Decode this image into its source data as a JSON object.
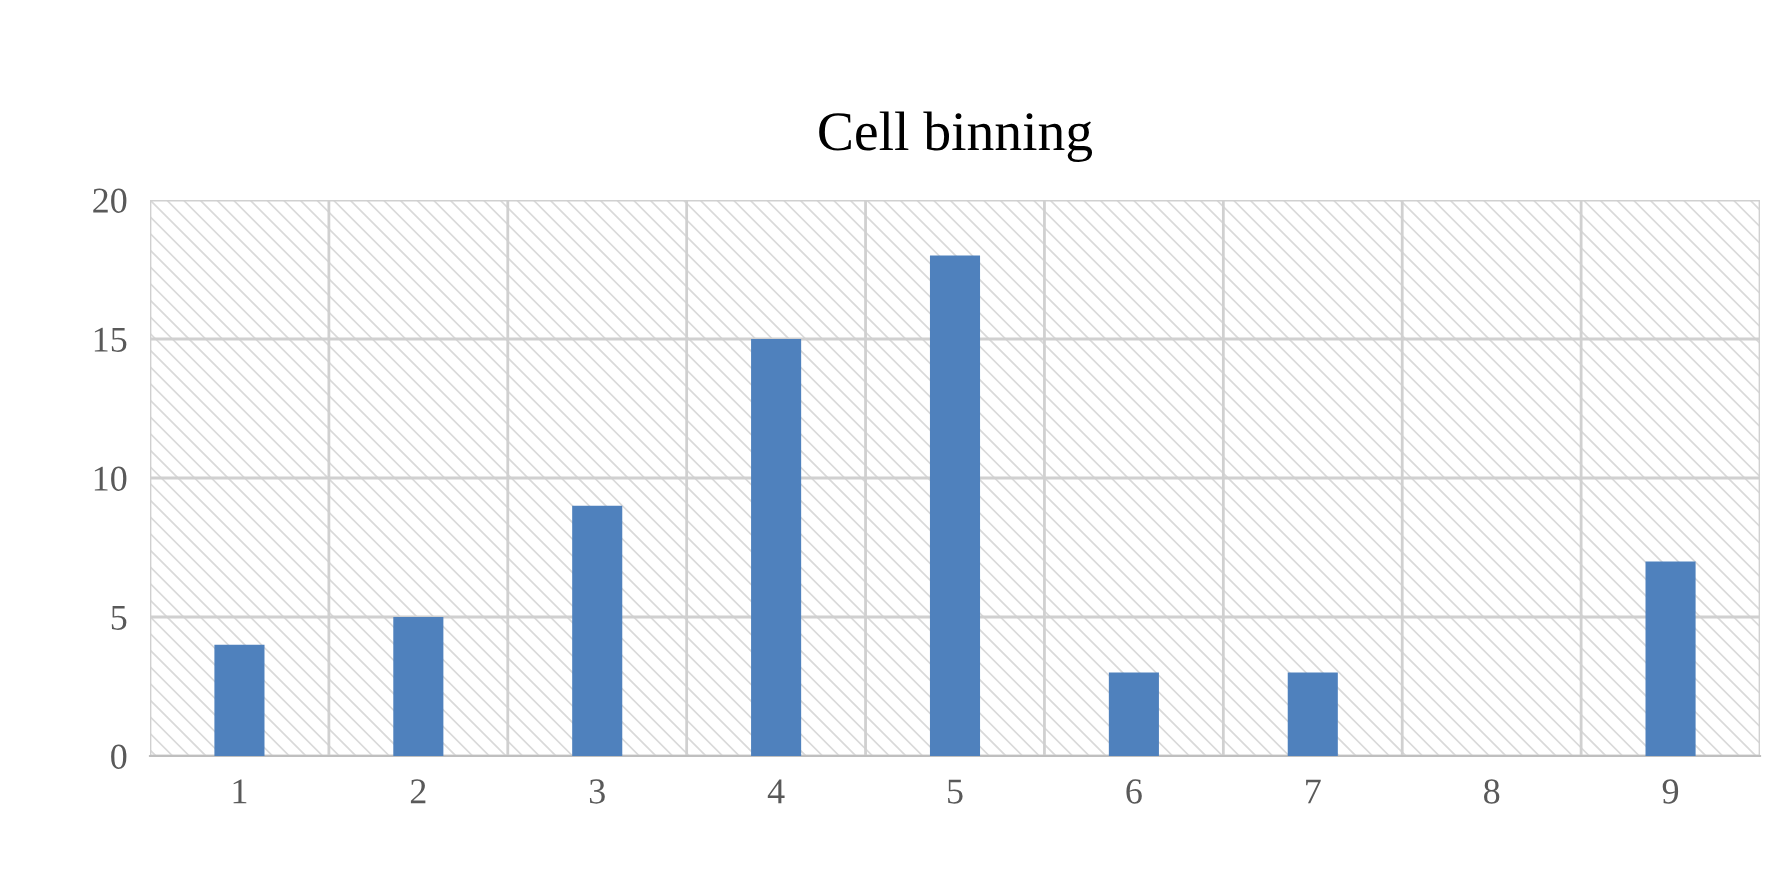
{
  "chart_data": {
    "type": "bar",
    "title": "Cell binning",
    "categories": [
      "1",
      "2",
      "3",
      "4",
      "5",
      "6",
      "7",
      "8",
      "9"
    ],
    "values": [
      4,
      5,
      9,
      15,
      18,
      3,
      3,
      0,
      7
    ],
    "color": "#4f81bd",
    "ylim": [
      0,
      20
    ],
    "yticks": [
      0,
      5,
      10,
      15,
      20
    ],
    "grid": true,
    "legend": false
  }
}
